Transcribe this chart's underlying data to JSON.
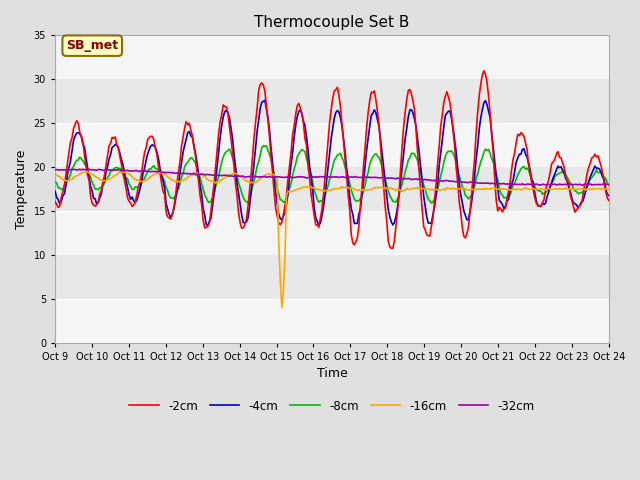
{
  "title": "Thermocouple Set B",
  "xlabel": "Time",
  "ylabel": "Temperature",
  "ylim": [
    0,
    35
  ],
  "yticks": [
    0,
    5,
    10,
    15,
    20,
    25,
    30,
    35
  ],
  "annotation_text": "SB_met",
  "annotation_color": "#8B0000",
  "annotation_bg": "#FFFFC0",
  "legend_labels": [
    "-2cm",
    "-4cm",
    "-8cm",
    "-16cm",
    "-32cm"
  ],
  "line_colors": [
    "#FF0000",
    "#0000CC",
    "#00BB00",
    "#FFA500",
    "#9900AA"
  ],
  "line_widths": [
    1.2,
    1.2,
    1.2,
    1.2,
    1.2
  ],
  "x_tick_labels": [
    "Oct 9",
    "Oct 10",
    "Oct 11",
    "Oct 12",
    "Oct 13",
    "Oct 14",
    "Oct 15",
    "Oct 16",
    "Oct 17",
    "Oct 18",
    "Oct 19",
    "Oct 20",
    "Oct 21",
    "Oct 22",
    "Oct 23",
    "Oct 24"
  ],
  "bg_color": "#E0E0E0",
  "plot_bg": "#E8E8E8",
  "grid_color": "#FFFFFF",
  "figsize": [
    6.4,
    4.8
  ],
  "dpi": 100
}
